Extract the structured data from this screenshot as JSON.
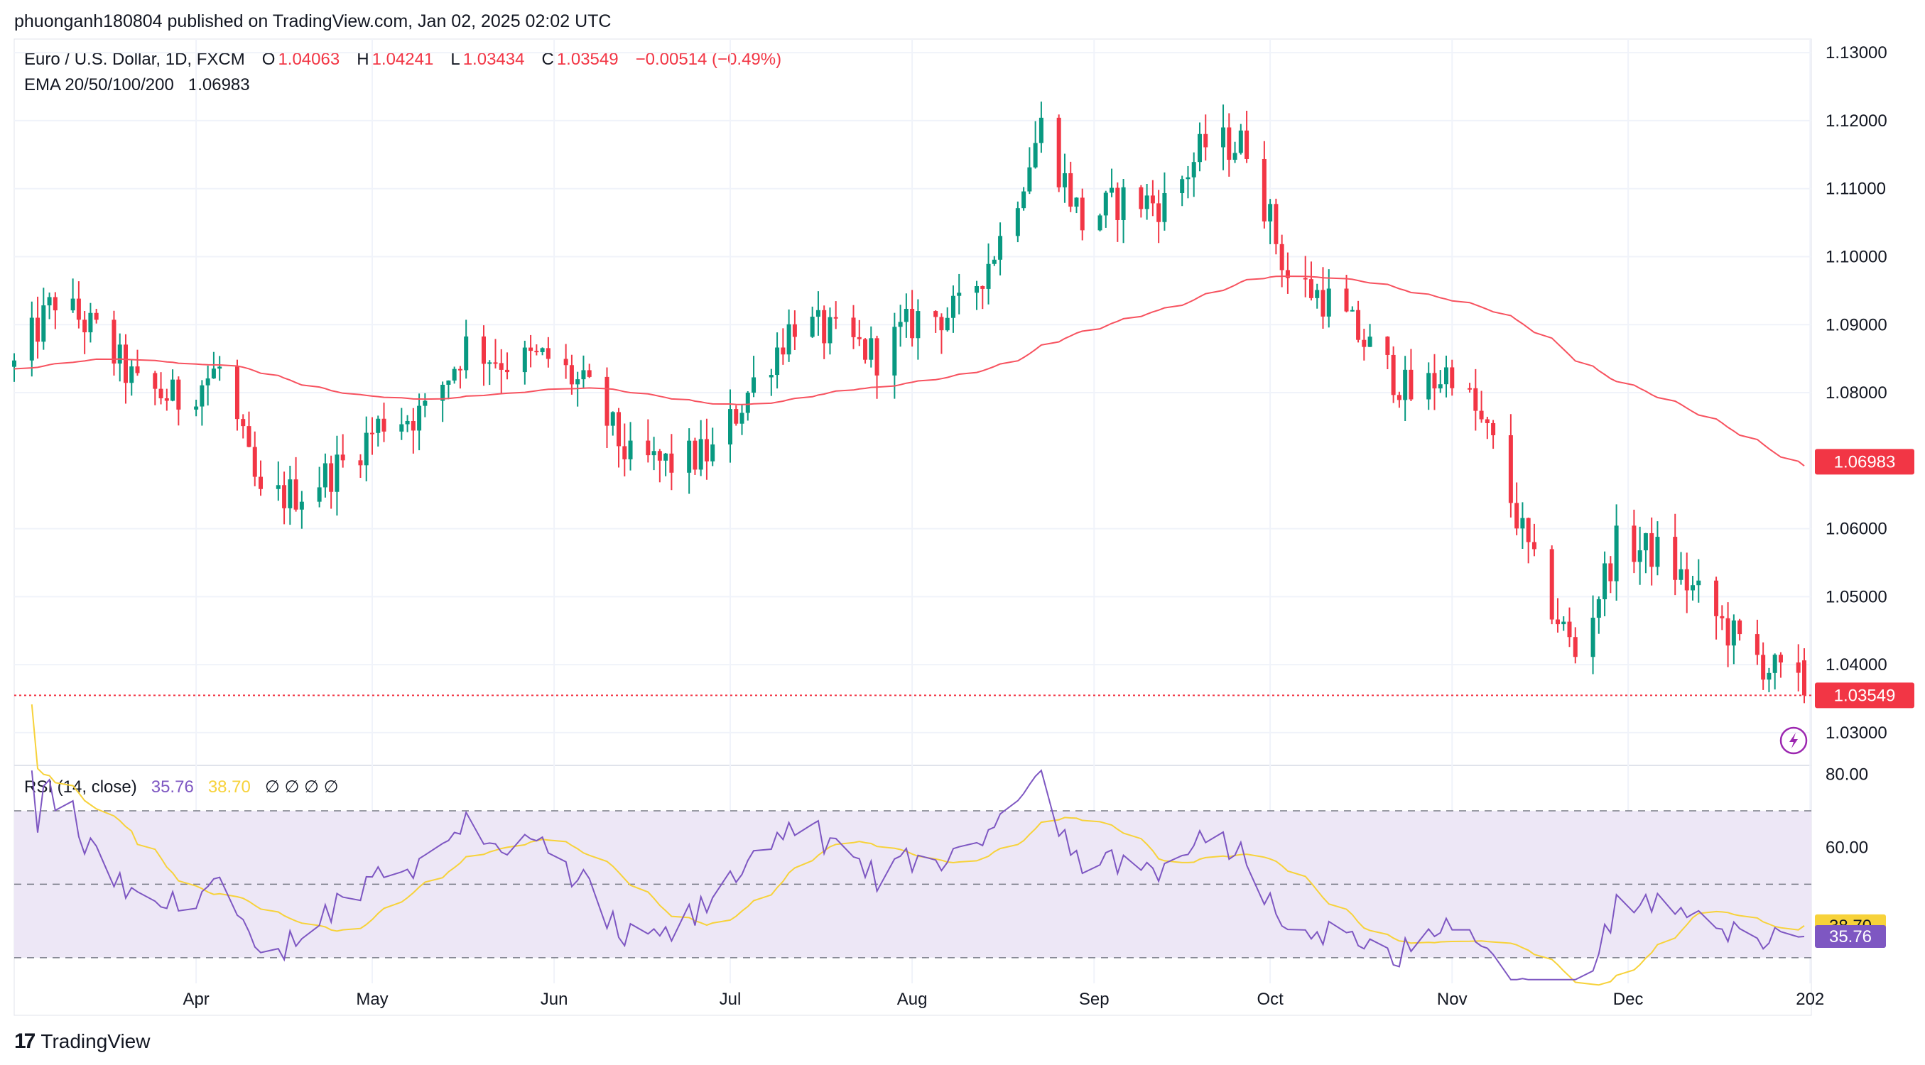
{
  "header": {
    "publisher": "phuonganh180804 published on TradingView.com, Jan 02, 2025 02:02 UTC"
  },
  "legend": {
    "symbol": "Euro / U.S. Dollar, 1D, FXCM",
    "o_label": "O",
    "o_value": "1.04063",
    "h_label": "H",
    "h_value": "1.04241",
    "l_label": "L",
    "l_value": "1.03434",
    "c_label": "C",
    "c_value": "1.03549",
    "change": "−0.00514 (−0.49%)",
    "ema_label": "EMA 20/50/100/200",
    "ema_value": "1.06983"
  },
  "rsi_legend": {
    "label": "RSI (14, close)",
    "rsi_value": "35.76",
    "ma_value": "38.70",
    "hidden": "∅ ∅ ∅ ∅"
  },
  "footer": {
    "brand": "TradingView"
  },
  "colors": {
    "up": "#089981",
    "down": "#f23645",
    "ema": "#f7525f",
    "rsi": "#7e57c2",
    "rsi_ma": "#f7d23a",
    "rsi_band": "#ede7f6"
  },
  "chart_data": [
    {
      "type": "candlestick",
      "title": "Euro / U.S. Dollar, 1D, FXCM",
      "x_ticks": [
        "Apr",
        "May",
        "Jun",
        "Jul",
        "Aug",
        "Sep",
        "Oct",
        "Nov",
        "Dec",
        "202"
      ],
      "y_ticks": [
        "1.13000",
        "1.12000",
        "1.11000",
        "1.10000",
        "1.09000",
        "1.08000",
        "1.06000",
        "1.05000",
        "1.04000",
        "1.03000"
      ],
      "ylim": [
        1.0255,
        1.132
      ],
      "last_price": "1.03549",
      "ema_label": "1.06983",
      "x_start": "2024-03-01",
      "x_end": "2024-12-31",
      "months_points": [
        {
          "date": "2024-03-01",
          "close": 1.0838
        },
        {
          "date": "2024-03-08",
          "close": 1.0937
        },
        {
          "date": "2024-03-15",
          "close": 1.0888
        },
        {
          "date": "2024-03-22",
          "close": 1.0808
        },
        {
          "date": "2024-03-29",
          "close": 1.079
        },
        {
          "date": "2024-04-05",
          "close": 1.0835
        },
        {
          "date": "2024-04-12",
          "close": 1.064
        },
        {
          "date": "2024-04-19",
          "close": 1.0655
        },
        {
          "date": "2024-04-26",
          "close": 1.0695
        },
        {
          "date": "2024-05-03",
          "close": 1.076
        },
        {
          "date": "2024-05-10",
          "close": 1.077
        },
        {
          "date": "2024-05-17",
          "close": 1.087
        },
        {
          "date": "2024-05-24",
          "close": 1.0845
        },
        {
          "date": "2024-05-31",
          "close": 1.085
        },
        {
          "date": "2024-06-07",
          "close": 1.08
        },
        {
          "date": "2024-06-14",
          "close": 1.07
        },
        {
          "date": "2024-06-21",
          "close": 1.0695
        },
        {
          "date": "2024-06-28",
          "close": 1.0712
        },
        {
          "date": "2024-07-05",
          "close": 1.0815
        },
        {
          "date": "2024-07-12",
          "close": 1.0905
        },
        {
          "date": "2024-07-19",
          "close": 1.0882
        },
        {
          "date": "2024-07-26",
          "close": 1.0855
        },
        {
          "date": "2024-08-02",
          "close": 1.091
        },
        {
          "date": "2024-08-09",
          "close": 1.0918
        },
        {
          "date": "2024-08-16",
          "close": 1.1025
        },
        {
          "date": "2024-08-23",
          "close": 1.1192
        },
        {
          "date": "2024-08-30",
          "close": 1.105
        },
        {
          "date": "2024-09-06",
          "close": 1.1085
        },
        {
          "date": "2024-09-13",
          "close": 1.1078
        },
        {
          "date": "2024-09-20",
          "close": 1.1165
        },
        {
          "date": "2024-09-27",
          "close": 1.1165
        },
        {
          "date": "2024-10-04",
          "close": 1.097
        },
        {
          "date": "2024-10-11",
          "close": 1.0935
        },
        {
          "date": "2024-10-18",
          "close": 1.0865
        },
        {
          "date": "2024-10-25",
          "close": 1.0795
        },
        {
          "date": "2024-11-01",
          "close": 1.0835
        },
        {
          "date": "2024-11-08",
          "close": 1.072
        },
        {
          "date": "2024-11-15",
          "close": 1.054
        },
        {
          "date": "2024-11-22",
          "close": 1.0415
        },
        {
          "date": "2024-11-29",
          "close": 1.0575
        },
        {
          "date": "2024-12-06",
          "close": 1.0565
        },
        {
          "date": "2024-12-13",
          "close": 1.05
        },
        {
          "date": "2024-12-20",
          "close": 1.043
        },
        {
          "date": "2024-12-31",
          "close": 1.0355
        }
      ]
    },
    {
      "type": "line",
      "title": "RSI (14, close)",
      "y_ticks": [
        "80.00",
        "60.00"
      ],
      "ylim": [
        23,
        82
      ],
      "bands": [
        70,
        50,
        30
      ],
      "rsi_last": "35.76",
      "ma_last": "38.70"
    }
  ]
}
